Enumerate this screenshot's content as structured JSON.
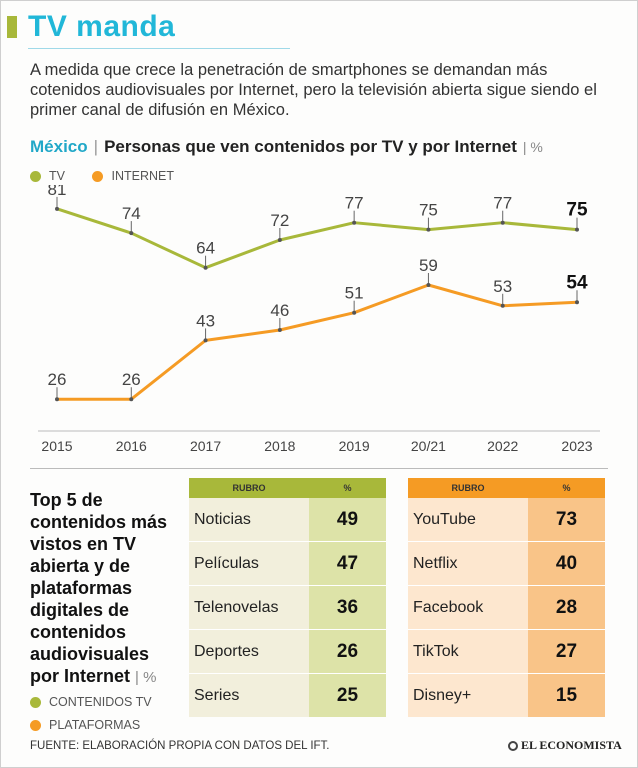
{
  "header": {
    "title": "TV manda",
    "intro": "A medida que crece la penetración de smartphones se demandan más cotenidos audiovisuales por Internet, pero la televisión abierta sigue siendo el primer canal de difusión en México."
  },
  "chart_header": {
    "country": "México",
    "separator": "|",
    "title": "Personas que ven contenidos por TV y por Internet",
    "unit": "| %"
  },
  "colors": {
    "tv": "#a8b83a",
    "internet": "#f59b24",
    "accent": "#21b7d8"
  },
  "chart_data": {
    "type": "line",
    "title": "Personas que ven contenidos por TV y por Internet",
    "ylabel": "%",
    "categories": [
      "2015",
      "2016",
      "2017",
      "2018",
      "2019",
      "20/21",
      "2022",
      "2023"
    ],
    "ylim": [
      20,
      85
    ],
    "series": [
      {
        "name": "TV",
        "values": [
          81,
          74,
          64,
          72,
          77,
          75,
          77,
          75
        ]
      },
      {
        "name": "INTERNET",
        "values": [
          26,
          26,
          43,
          46,
          51,
          59,
          53,
          54
        ]
      }
    ],
    "legend": "top-left",
    "grid": false
  },
  "side": {
    "title": "Top 5 de contenidos más vistos en TV abierta y de plataformas digitales de contenidos audiovisuales por Internet",
    "unit": "| %",
    "legend_tv": "CONTENIDOS TV",
    "legend_platforms": "PLATAFORMAS"
  },
  "tv_table": {
    "headers": [
      "RUBRO",
      "%"
    ],
    "rows": [
      {
        "label": "Noticias",
        "value": "49"
      },
      {
        "label": "Películas",
        "value": "47"
      },
      {
        "label": "Telenovelas",
        "value": "36"
      },
      {
        "label": "Deportes",
        "value": "26"
      },
      {
        "label": "Series",
        "value": "25"
      }
    ]
  },
  "platform_table": {
    "headers": [
      "RUBRO",
      "%"
    ],
    "rows": [
      {
        "label": "YouTube",
        "value": "73"
      },
      {
        "label": "Netflix",
        "value": "40"
      },
      {
        "label": "Facebook",
        "value": "28"
      },
      {
        "label": "TikTok",
        "value": "27"
      },
      {
        "label": "Disney+",
        "value": "15"
      }
    ]
  },
  "footer": {
    "source": "FUENTE: ELABORACIÓN PROPIA CON DATOS DEL IFT.",
    "brand": "EL ECONOMISTA"
  }
}
